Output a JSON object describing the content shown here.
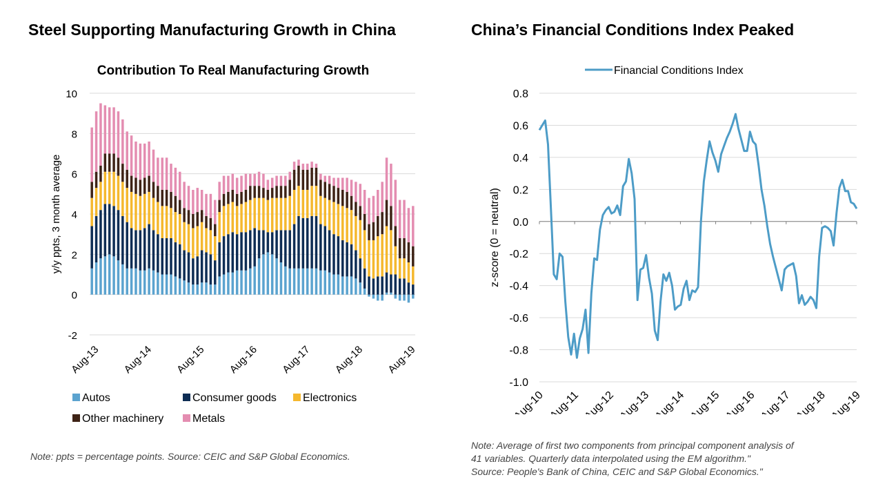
{
  "left_panel": {
    "heading": "Steel Supporting Manufacturing Growth in China",
    "note": "Note: ppts = percentage points. Source: CEIC and S&P Global Economics."
  },
  "right_panel": {
    "heading": "China’s Financial Conditions Index Peaked",
    "note_lines": [
      "Note:  Average of first two components from principal component analysis of",
      "41 variables. Quarterly data interpolated using the EM algorithm.\"",
      "Source: People's Bank of China, CEIC and S&P Global Economics.\""
    ]
  },
  "chart_data": [
    {
      "type": "bar",
      "stacked": true,
      "title": "Contribution To Real Manufacturing Growth",
      "ylabel": "y/y ppts, 3 month average",
      "ylim": [
        -2,
        10
      ],
      "yticks": [
        -2,
        0,
        2,
        4,
        6,
        8,
        10
      ],
      "grid": true,
      "legend_position": "bottom",
      "xtick_labels": [
        "Aug-13",
        "Aug-14",
        "Aug-15",
        "Aug-16",
        "Aug-17",
        "Aug-18",
        "Aug-19"
      ],
      "x": [
        "Jul-13",
        "Aug-13",
        "Sep-13",
        "Oct-13",
        "Nov-13",
        "Dec-13",
        "Jan-14",
        "Feb-14",
        "Mar-14",
        "Apr-14",
        "May-14",
        "Jun-14",
        "Jul-14",
        "Aug-14",
        "Sep-14",
        "Oct-14",
        "Nov-14",
        "Dec-14",
        "Jan-15",
        "Feb-15",
        "Mar-15",
        "Apr-15",
        "May-15",
        "Jun-15",
        "Jul-15",
        "Aug-15",
        "Sep-15",
        "Oct-15",
        "Nov-15",
        "Dec-15",
        "Jan-16",
        "Feb-16",
        "Mar-16",
        "Apr-16",
        "May-16",
        "Jun-16",
        "Jul-16",
        "Aug-16",
        "Sep-16",
        "Oct-16",
        "Nov-16",
        "Dec-16",
        "Jan-17",
        "Feb-17",
        "Mar-17",
        "Apr-17",
        "May-17",
        "Jun-17",
        "Jul-17",
        "Aug-17",
        "Sep-17",
        "Oct-17",
        "Nov-17",
        "Dec-17",
        "Jan-18",
        "Feb-18",
        "Mar-18",
        "Apr-18",
        "May-18",
        "Jun-18",
        "Jul-18",
        "Aug-18",
        "Sep-18",
        "Oct-18",
        "Nov-18",
        "Dec-18",
        "Jan-19",
        "Feb-19",
        "Mar-19",
        "Apr-19",
        "May-19",
        "Jun-19",
        "Jul-19",
        "Aug-19"
      ],
      "colors": {
        "Autos": "#5ba3cf",
        "Consumer goods": "#0e2d54",
        "Electronics": "#f5b82e",
        "Other machinery": "#3e2316",
        "Metals": "#e48db1"
      },
      "series": [
        {
          "name": "Autos",
          "values": [
            1.3,
            1.6,
            1.8,
            1.9,
            2.0,
            1.9,
            1.7,
            1.5,
            1.3,
            1.3,
            1.3,
            1.2,
            1.2,
            1.3,
            1.2,
            1.1,
            1.0,
            1.0,
            1.0,
            0.9,
            0.8,
            0.7,
            0.6,
            0.5,
            0.5,
            0.6,
            0.6,
            0.5,
            0.5,
            0.9,
            1.0,
            1.1,
            1.1,
            1.2,
            1.2,
            1.2,
            1.3,
            1.4,
            1.8,
            2.0,
            2.1,
            2.0,
            1.8,
            1.6,
            1.4,
            1.3,
            1.3,
            1.3,
            1.3,
            1.3,
            1.3,
            1.3,
            1.2,
            1.2,
            1.1,
            1.0,
            1.0,
            0.9,
            0.9,
            0.9,
            0.8,
            0.6,
            0.3,
            -0.1,
            -0.2,
            -0.3,
            -0.3,
            0.1,
            0.1,
            -0.2,
            -0.3,
            -0.3,
            -0.4,
            -0.2
          ]
        },
        {
          "name": "Consumer goods",
          "values": [
            2.1,
            2.3,
            2.4,
            2.6,
            2.5,
            2.5,
            2.5,
            2.4,
            2.3,
            2.0,
            1.9,
            2.0,
            2.1,
            2.2,
            2.0,
            1.9,
            1.8,
            1.8,
            1.8,
            1.7,
            1.7,
            1.5,
            1.5,
            1.3,
            1.4,
            1.6,
            1.5,
            1.5,
            1.2,
            1.7,
            1.9,
            1.9,
            2.0,
            1.8,
            1.9,
            1.9,
            1.9,
            1.9,
            1.4,
            1.2,
            1.0,
            1.1,
            1.4,
            1.6,
            1.8,
            1.9,
            2.2,
            2.6,
            2.5,
            2.5,
            2.6,
            2.6,
            2.3,
            2.2,
            2.1,
            2.0,
            1.9,
            1.8,
            1.7,
            1.6,
            1.4,
            1.2,
            1.0,
            0.9,
            0.8,
            0.9,
            0.9,
            1.0,
            0.9,
            1.0,
            0.8,
            0.8,
            0.6,
            0.5
          ]
        },
        {
          "name": "Electronics",
          "values": [
            1.4,
            1.4,
            1.4,
            1.6,
            1.6,
            1.7,
            1.7,
            1.7,
            1.7,
            1.8,
            1.8,
            1.7,
            1.7,
            1.6,
            1.6,
            1.6,
            1.6,
            1.6,
            1.5,
            1.5,
            1.5,
            1.4,
            1.4,
            1.5,
            1.5,
            1.4,
            1.2,
            1.2,
            1.2,
            1.5,
            1.5,
            1.5,
            1.5,
            1.4,
            1.4,
            1.5,
            1.5,
            1.5,
            1.6,
            1.6,
            1.6,
            1.7,
            1.6,
            1.6,
            1.6,
            1.7,
            1.7,
            1.5,
            1.4,
            1.4,
            1.5,
            1.5,
            1.4,
            1.4,
            1.5,
            1.6,
            1.6,
            1.7,
            1.7,
            1.7,
            1.7,
            1.9,
            1.9,
            1.8,
            1.9,
            2.0,
            2.1,
            2.3,
            2.2,
            1.4,
            1.0,
            1.0,
            1.0,
            0.9
          ]
        },
        {
          "name": "Other machinery",
          "values": [
            0.8,
            0.8,
            0.8,
            0.9,
            0.9,
            0.9,
            0.9,
            0.9,
            0.9,
            0.8,
            0.8,
            0.8,
            0.8,
            0.8,
            0.8,
            0.8,
            0.8,
            0.8,
            0.8,
            0.8,
            0.7,
            0.7,
            0.7,
            0.7,
            0.7,
            0.6,
            0.6,
            0.6,
            0.6,
            0.6,
            0.6,
            0.6,
            0.6,
            0.6,
            0.6,
            0.6,
            0.7,
            0.6,
            0.6,
            0.5,
            0.5,
            0.5,
            0.6,
            0.6,
            0.6,
            0.8,
            1.0,
            1.0,
            1.0,
            1.0,
            0.9,
            0.9,
            0.8,
            0.8,
            0.8,
            0.8,
            0.8,
            0.8,
            0.8,
            0.7,
            0.7,
            0.7,
            0.8,
            0.8,
            0.9,
            1.0,
            1.1,
            1.3,
            1.2,
            1.0,
            1.0,
            1.0,
            1.0,
            1.0
          ]
        },
        {
          "name": "Metals",
          "values": [
            2.7,
            3.0,
            3.1,
            2.4,
            2.3,
            2.3,
            2.3,
            2.2,
            1.9,
            2.0,
            1.8,
            1.8,
            1.7,
            1.7,
            1.6,
            1.4,
            1.6,
            1.6,
            1.4,
            1.4,
            1.4,
            1.3,
            1.2,
            1.2,
            1.2,
            1.0,
            1.1,
            1.2,
            1.2,
            0.9,
            0.9,
            0.8,
            0.8,
            0.8,
            0.8,
            0.8,
            0.6,
            0.6,
            0.7,
            0.7,
            0.5,
            0.5,
            0.5,
            0.5,
            0.5,
            0.4,
            0.4,
            0.3,
            0.3,
            0.3,
            0.3,
            0.2,
            0.3,
            0.3,
            0.4,
            0.4,
            0.5,
            0.6,
            0.7,
            0.8,
            1.0,
            1.1,
            1.2,
            1.3,
            1.3,
            1.3,
            1.5,
            2.1,
            2.1,
            2.3,
            1.9,
            1.9,
            1.7,
            2.0
          ]
        }
      ]
    },
    {
      "type": "line",
      "title": "",
      "xlabel": "",
      "ylabel": "z-score (0 = neutral)",
      "ylim": [
        -1.0,
        0.8
      ],
      "yticks": [
        "0.8",
        "0.6",
        "0.4",
        "0.2",
        "0.0",
        "-0.2",
        "-0.4",
        "-0.6",
        "-0.8",
        "-1.0"
      ],
      "grid": true,
      "legend_position": "top",
      "xtick_labels": [
        "Aug-10",
        "Aug-11",
        "Aug-12",
        "Aug-13",
        "Aug-14",
        "Aug-15",
        "Aug-16",
        "Aug-17",
        "Aug-18",
        "Aug-19"
      ],
      "color": "#4d9cc7",
      "series": [
        {
          "name": "Financial Conditions Index",
          "values": [
            0.57,
            0.6,
            0.63,
            0.48,
            0.08,
            -0.33,
            -0.36,
            -0.2,
            -0.22,
            -0.5,
            -0.72,
            -0.83,
            -0.7,
            -0.85,
            -0.73,
            -0.67,
            -0.55,
            -0.82,
            -0.45,
            -0.23,
            -0.24,
            -0.05,
            0.04,
            0.07,
            0.09,
            0.05,
            0.06,
            0.1,
            0.04,
            0.22,
            0.25,
            0.39,
            0.3,
            0.14,
            -0.49,
            -0.3,
            -0.29,
            -0.21,
            -0.35,
            -0.45,
            -0.68,
            -0.74,
            -0.5,
            -0.33,
            -0.37,
            -0.32,
            -0.4,
            -0.55,
            -0.53,
            -0.52,
            -0.42,
            -0.37,
            -0.49,
            -0.43,
            -0.44,
            -0.41,
            0.0,
            0.25,
            0.38,
            0.5,
            0.43,
            0.38,
            0.31,
            0.42,
            0.47,
            0.52,
            0.56,
            0.61,
            0.67,
            0.58,
            0.51,
            0.44,
            0.44,
            0.56,
            0.5,
            0.48,
            0.35,
            0.2,
            0.1,
            -0.03,
            -0.14,
            -0.22,
            -0.29,
            -0.36,
            -0.43,
            -0.3,
            -0.28,
            -0.27,
            -0.26,
            -0.34,
            -0.51,
            -0.46,
            -0.52,
            -0.5,
            -0.47,
            -0.49,
            -0.54,
            -0.22,
            -0.04,
            -0.03,
            -0.04,
            -0.06,
            -0.15,
            0.05,
            0.21,
            0.26,
            0.19,
            0.19,
            0.12,
            0.11,
            0.08
          ]
        }
      ]
    }
  ]
}
